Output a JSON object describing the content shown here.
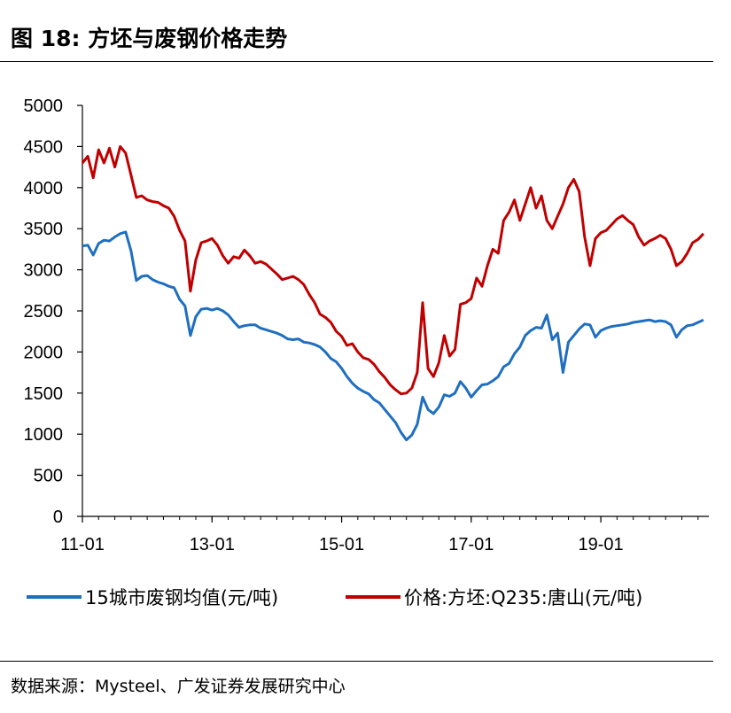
{
  "header": {
    "title": "图 18:  方坯与废钢价格走势"
  },
  "footer": {
    "source": "数据来源：Mysteel、广发证券发展研究中心"
  },
  "colors": {
    "series1": "#1f6fc0",
    "series2": "#c00000"
  },
  "chart_data": {
    "type": "line",
    "ylim": [
      0,
      5000
    ],
    "yticks": [
      "0",
      "500",
      "1000",
      "1500",
      "2000",
      "2500",
      "3000",
      "3500",
      "4000",
      "4500",
      "5000"
    ],
    "xlim": [
      "2011-01",
      "2020-08"
    ],
    "xticks": [
      {
        "label": "11-01",
        "date": "2011-01"
      },
      {
        "label": "13-01",
        "date": "2013-01"
      },
      {
        "label": "15-01",
        "date": "2015-01"
      },
      {
        "label": "17-01",
        "date": "2017-01"
      },
      {
        "label": "19-01",
        "date": "2019-01"
      }
    ],
    "grid": false,
    "legend": "bottom",
    "series": [
      {
        "name": "15城市废钢均值(元/吨)",
        "color": "#1f6fc0",
        "points": [
          [
            "2011-01",
            3290
          ],
          [
            "2011-02",
            3300
          ],
          [
            "2011-03",
            3180
          ],
          [
            "2011-04",
            3320
          ],
          [
            "2011-05",
            3360
          ],
          [
            "2011-06",
            3350
          ],
          [
            "2011-07",
            3400
          ],
          [
            "2011-08",
            3440
          ],
          [
            "2011-09",
            3460
          ],
          [
            "2011-10",
            3230
          ],
          [
            "2011-11",
            2870
          ],
          [
            "2011-12",
            2920
          ],
          [
            "2012-01",
            2930
          ],
          [
            "2012-02",
            2880
          ],
          [
            "2012-03",
            2850
          ],
          [
            "2012-04",
            2830
          ],
          [
            "2012-05",
            2800
          ],
          [
            "2012-06",
            2780
          ],
          [
            "2012-07",
            2640
          ],
          [
            "2012-08",
            2560
          ],
          [
            "2012-09",
            2200
          ],
          [
            "2012-10",
            2430
          ],
          [
            "2012-11",
            2520
          ],
          [
            "2012-12",
            2530
          ],
          [
            "2013-01",
            2510
          ],
          [
            "2013-02",
            2530
          ],
          [
            "2013-03",
            2500
          ],
          [
            "2013-04",
            2450
          ],
          [
            "2013-05",
            2370
          ],
          [
            "2013-06",
            2300
          ],
          [
            "2013-07",
            2320
          ],
          [
            "2013-08",
            2330
          ],
          [
            "2013-09",
            2330
          ],
          [
            "2013-10",
            2290
          ],
          [
            "2013-11",
            2270
          ],
          [
            "2013-12",
            2250
          ],
          [
            "2014-01",
            2230
          ],
          [
            "2014-02",
            2200
          ],
          [
            "2014-03",
            2160
          ],
          [
            "2014-04",
            2150
          ],
          [
            "2014-05",
            2160
          ],
          [
            "2014-06",
            2120
          ],
          [
            "2014-07",
            2110
          ],
          [
            "2014-08",
            2090
          ],
          [
            "2014-09",
            2060
          ],
          [
            "2014-10",
            2000
          ],
          [
            "2014-11",
            1920
          ],
          [
            "2014-12",
            1880
          ],
          [
            "2015-01",
            1800
          ],
          [
            "2015-02",
            1700
          ],
          [
            "2015-03",
            1620
          ],
          [
            "2015-04",
            1560
          ],
          [
            "2015-05",
            1520
          ],
          [
            "2015-06",
            1490
          ],
          [
            "2015-07",
            1420
          ],
          [
            "2015-08",
            1380
          ],
          [
            "2015-09",
            1300
          ],
          [
            "2015-10",
            1220
          ],
          [
            "2015-11",
            1140
          ],
          [
            "2015-12",
            1020
          ],
          [
            "2016-01",
            930
          ],
          [
            "2016-02",
            990
          ],
          [
            "2016-03",
            1120
          ],
          [
            "2016-04",
            1450
          ],
          [
            "2016-05",
            1300
          ],
          [
            "2016-06",
            1250
          ],
          [
            "2016-07",
            1330
          ],
          [
            "2016-08",
            1480
          ],
          [
            "2016-09",
            1460
          ],
          [
            "2016-10",
            1500
          ],
          [
            "2016-11",
            1640
          ],
          [
            "2016-12",
            1560
          ],
          [
            "2017-01",
            1450
          ],
          [
            "2017-02",
            1530
          ],
          [
            "2017-03",
            1600
          ],
          [
            "2017-04",
            1610
          ],
          [
            "2017-05",
            1650
          ],
          [
            "2017-06",
            1700
          ],
          [
            "2017-07",
            1820
          ],
          [
            "2017-08",
            1860
          ],
          [
            "2017-09",
            1980
          ],
          [
            "2017-10",
            2060
          ],
          [
            "2017-11",
            2200
          ],
          [
            "2017-12",
            2260
          ],
          [
            "2018-01",
            2300
          ],
          [
            "2018-02",
            2290
          ],
          [
            "2018-03",
            2450
          ],
          [
            "2018-04",
            2150
          ],
          [
            "2018-05",
            2230
          ],
          [
            "2018-06",
            1750
          ],
          [
            "2018-07",
            2120
          ],
          [
            "2018-08",
            2200
          ],
          [
            "2018-09",
            2280
          ],
          [
            "2018-10",
            2340
          ],
          [
            "2018-11",
            2330
          ],
          [
            "2018-12",
            2180
          ],
          [
            "2019-01",
            2260
          ],
          [
            "2019-02",
            2290
          ],
          [
            "2019-03",
            2310
          ],
          [
            "2019-04",
            2320
          ],
          [
            "2019-05",
            2330
          ],
          [
            "2019-06",
            2340
          ],
          [
            "2019-07",
            2360
          ],
          [
            "2019-08",
            2370
          ],
          [
            "2019-09",
            2380
          ],
          [
            "2019-10",
            2390
          ],
          [
            "2019-11",
            2370
          ],
          [
            "2019-12",
            2380
          ],
          [
            "2020-01",
            2370
          ],
          [
            "2020-02",
            2330
          ],
          [
            "2020-03",
            2180
          ],
          [
            "2020-04",
            2270
          ],
          [
            "2020-05",
            2320
          ],
          [
            "2020-06",
            2330
          ],
          [
            "2020-07",
            2360
          ],
          [
            "2020-08",
            2390
          ]
        ]
      },
      {
        "name": "价格:方坯:Q235:唐山(元/吨)",
        "color": "#c00000",
        "points": [
          [
            "2011-01",
            4300
          ],
          [
            "2011-02",
            4380
          ],
          [
            "2011-03",
            4120
          ],
          [
            "2011-04",
            4460
          ],
          [
            "2011-05",
            4300
          ],
          [
            "2011-06",
            4480
          ],
          [
            "2011-07",
            4250
          ],
          [
            "2011-08",
            4500
          ],
          [
            "2011-09",
            4420
          ],
          [
            "2011-10",
            4150
          ],
          [
            "2011-11",
            3880
          ],
          [
            "2011-12",
            3900
          ],
          [
            "2012-01",
            3850
          ],
          [
            "2012-02",
            3830
          ],
          [
            "2012-03",
            3820
          ],
          [
            "2012-04",
            3780
          ],
          [
            "2012-05",
            3750
          ],
          [
            "2012-06",
            3650
          ],
          [
            "2012-07",
            3480
          ],
          [
            "2012-08",
            3350
          ],
          [
            "2012-09",
            2740
          ],
          [
            "2012-10",
            3120
          ],
          [
            "2012-11",
            3330
          ],
          [
            "2012-12",
            3350
          ],
          [
            "2013-01",
            3380
          ],
          [
            "2013-02",
            3300
          ],
          [
            "2013-03",
            3170
          ],
          [
            "2013-04",
            3080
          ],
          [
            "2013-05",
            3160
          ],
          [
            "2013-06",
            3140
          ],
          [
            "2013-07",
            3240
          ],
          [
            "2013-08",
            3170
          ],
          [
            "2013-09",
            3080
          ],
          [
            "2013-10",
            3100
          ],
          [
            "2013-11",
            3070
          ],
          [
            "2013-12",
            3010
          ],
          [
            "2014-01",
            2950
          ],
          [
            "2014-02",
            2880
          ],
          [
            "2014-03",
            2900
          ],
          [
            "2014-04",
            2920
          ],
          [
            "2014-05",
            2880
          ],
          [
            "2014-06",
            2820
          ],
          [
            "2014-07",
            2700
          ],
          [
            "2014-08",
            2600
          ],
          [
            "2014-09",
            2460
          ],
          [
            "2014-10",
            2420
          ],
          [
            "2014-11",
            2360
          ],
          [
            "2014-12",
            2250
          ],
          [
            "2015-01",
            2190
          ],
          [
            "2015-02",
            2080
          ],
          [
            "2015-03",
            2100
          ],
          [
            "2015-04",
            2000
          ],
          [
            "2015-05",
            1930
          ],
          [
            "2015-06",
            1910
          ],
          [
            "2015-07",
            1850
          ],
          [
            "2015-08",
            1760
          ],
          [
            "2015-09",
            1690
          ],
          [
            "2015-10",
            1600
          ],
          [
            "2015-11",
            1540
          ],
          [
            "2015-12",
            1490
          ],
          [
            "2016-01",
            1500
          ],
          [
            "2016-02",
            1560
          ],
          [
            "2016-03",
            1750
          ],
          [
            "2016-04",
            2600
          ],
          [
            "2016-05",
            1800
          ],
          [
            "2016-06",
            1700
          ],
          [
            "2016-07",
            1870
          ],
          [
            "2016-08",
            2200
          ],
          [
            "2016-09",
            1950
          ],
          [
            "2016-10",
            2030
          ],
          [
            "2016-11",
            2580
          ],
          [
            "2016-12",
            2600
          ],
          [
            "2017-01",
            2650
          ],
          [
            "2017-02",
            2900
          ],
          [
            "2017-03",
            2800
          ],
          [
            "2017-04",
            3050
          ],
          [
            "2017-05",
            3250
          ],
          [
            "2017-06",
            3200
          ],
          [
            "2017-07",
            3600
          ],
          [
            "2017-08",
            3700
          ],
          [
            "2017-09",
            3850
          ],
          [
            "2017-10",
            3600
          ],
          [
            "2017-11",
            3800
          ],
          [
            "2017-12",
            4000
          ],
          [
            "2018-01",
            3750
          ],
          [
            "2018-02",
            3900
          ],
          [
            "2018-03",
            3600
          ],
          [
            "2018-04",
            3500
          ],
          [
            "2018-05",
            3650
          ],
          [
            "2018-06",
            3800
          ],
          [
            "2018-07",
            4000
          ],
          [
            "2018-08",
            4100
          ],
          [
            "2018-09",
            3950
          ],
          [
            "2018-10",
            3400
          ],
          [
            "2018-11",
            3050
          ],
          [
            "2018-12",
            3380
          ],
          [
            "2019-01",
            3450
          ],
          [
            "2019-02",
            3480
          ],
          [
            "2019-03",
            3550
          ],
          [
            "2019-04",
            3620
          ],
          [
            "2019-05",
            3660
          ],
          [
            "2019-06",
            3600
          ],
          [
            "2019-07",
            3550
          ],
          [
            "2019-08",
            3400
          ],
          [
            "2019-09",
            3300
          ],
          [
            "2019-10",
            3350
          ],
          [
            "2019-11",
            3380
          ],
          [
            "2019-12",
            3420
          ],
          [
            "2020-01",
            3380
          ],
          [
            "2020-02",
            3250
          ],
          [
            "2020-03",
            3050
          ],
          [
            "2020-04",
            3100
          ],
          [
            "2020-05",
            3200
          ],
          [
            "2020-06",
            3330
          ],
          [
            "2020-07",
            3370
          ],
          [
            "2020-08",
            3440
          ]
        ]
      }
    ]
  }
}
